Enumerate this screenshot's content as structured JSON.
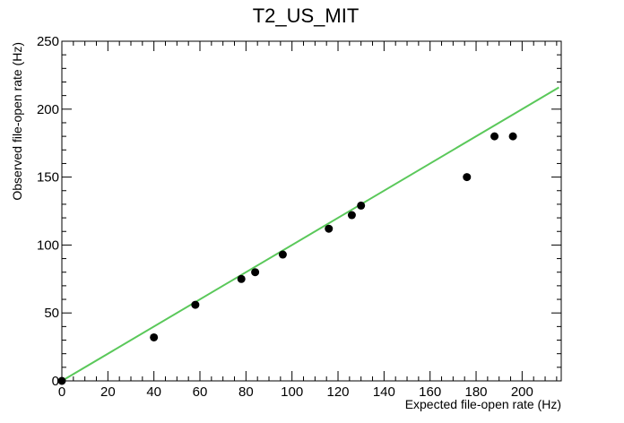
{
  "chart_data": {
    "type": "scatter",
    "title": "T2_US_MIT",
    "xlabel": "Expected file-open rate (Hz)",
    "ylabel": "Observed file-open rate (Hz)",
    "xlim": [
      0,
      217
    ],
    "ylim": [
      0,
      250
    ],
    "x_ticks": [
      "0",
      "20",
      "40",
      "60",
      "80",
      "100",
      "120",
      "140",
      "160",
      "180",
      "200"
    ],
    "y_ticks": [
      "0",
      "50",
      "100",
      "150",
      "200",
      "250"
    ],
    "grid": false,
    "series": [
      {
        "kind": "points",
        "color": "#000000",
        "points": [
          {
            "x": 0,
            "y": 0
          },
          {
            "x": 40,
            "y": 32
          },
          {
            "x": 58,
            "y": 56
          },
          {
            "x": 78,
            "y": 75
          },
          {
            "x": 84,
            "y": 80
          },
          {
            "x": 96,
            "y": 93
          },
          {
            "x": 116,
            "y": 112
          },
          {
            "x": 126,
            "y": 122
          },
          {
            "x": 130,
            "y": 129
          },
          {
            "x": 176,
            "y": 150
          },
          {
            "x": 188,
            "y": 180
          },
          {
            "x": 196,
            "y": 180
          }
        ]
      },
      {
        "kind": "line",
        "color": "#5ac85a",
        "points": [
          {
            "x": 0,
            "y": 0
          },
          {
            "x": 216,
            "y": 216
          }
        ]
      }
    ]
  }
}
